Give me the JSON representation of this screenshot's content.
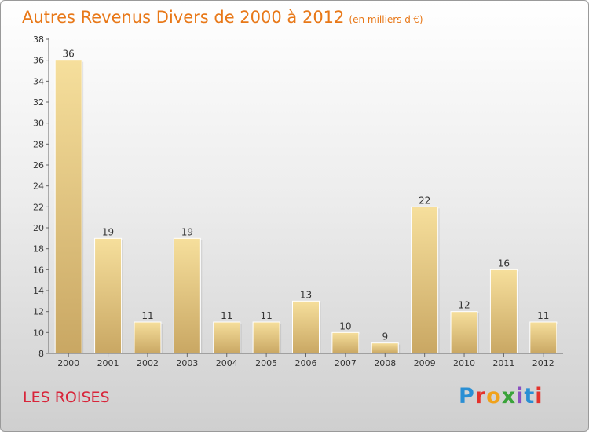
{
  "title": "Autres Revenus Divers de 2000 à 2012",
  "unit": "(en milliers d'€)",
  "place_name": "LES ROISES",
  "logo_text": "Proxiti",
  "logo_colors": [
    "#2a8fd4",
    "#e4322b",
    "#f0a21b",
    "#3aa33a",
    "#8a4fc0",
    "#2a8fd4",
    "#e4322b"
  ],
  "colors": {
    "bar_light": "#f6df9c",
    "bar_dark": "#c9a763",
    "title": "#e87818",
    "place": "#d8253a"
  },
  "chart_data": {
    "type": "bar",
    "categories": [
      "2000",
      "2001",
      "2002",
      "2003",
      "2004",
      "2005",
      "2006",
      "2007",
      "2008",
      "2009",
      "2010",
      "2011",
      "2012"
    ],
    "values": [
      36,
      19,
      11,
      19,
      11,
      11,
      13,
      10,
      9,
      22,
      12,
      16,
      11
    ],
    "data_labels": [
      "36",
      "19",
      "11",
      "19",
      "11",
      "11",
      "13",
      "10",
      "9",
      "22",
      "12",
      "16",
      "11"
    ],
    "y_ticks": [
      "8",
      "10",
      "12",
      "14",
      "16",
      "18",
      "20",
      "22",
      "24",
      "26",
      "28",
      "30",
      "32",
      "34",
      "36",
      "38"
    ],
    "ylim": [
      8,
      38
    ],
    "grid": false,
    "title": "Autres Revenus Divers de 2000 à 2012",
    "xlabel": "",
    "ylabel": ""
  }
}
